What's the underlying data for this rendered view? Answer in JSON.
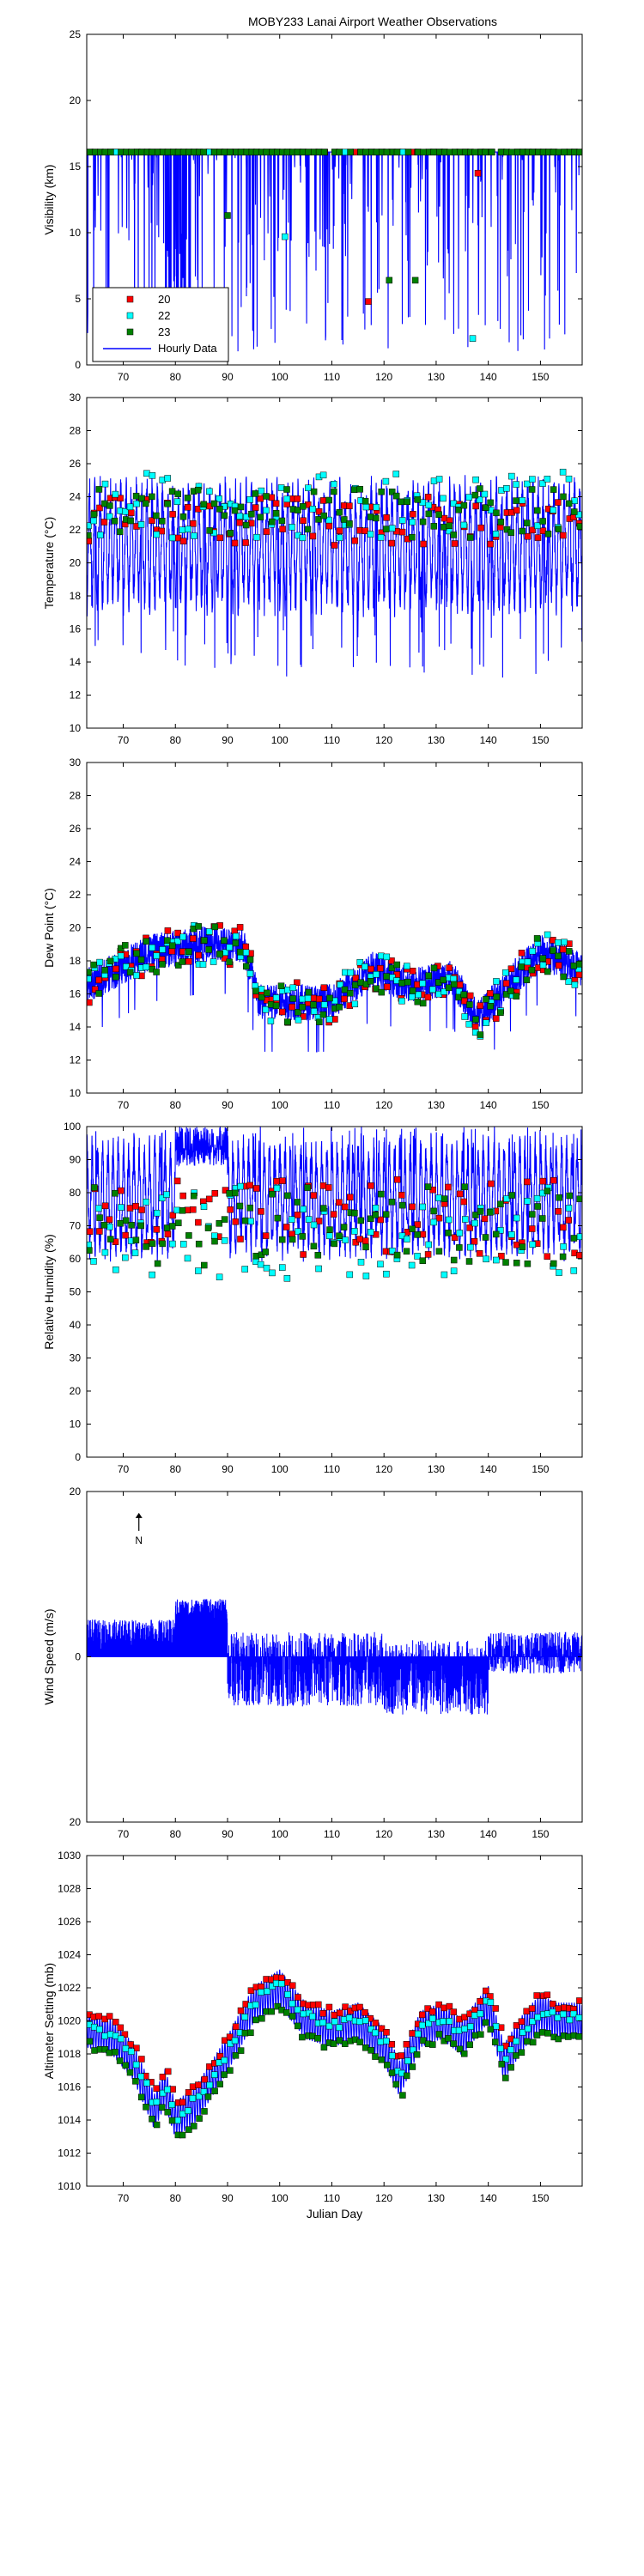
{
  "figure_title": "MOBY233 Lanai Airport Weather Observations",
  "colors": {
    "hourly": "#0000ff",
    "obs20": "#ff0000",
    "obs22": "#00ffff",
    "obs23": "#008000"
  },
  "chart_data": [
    {
      "type": "line",
      "ylabel": "Visibility (km)",
      "xlim": [
        63,
        158
      ],
      "ylim": [
        0,
        25
      ],
      "xticks": [
        70,
        80,
        90,
        100,
        110,
        120,
        130,
        140,
        150
      ],
      "yticks": [
        0,
        5,
        10,
        15,
        20,
        25
      ],
      "legend": {
        "position": "bottom-left",
        "entries": [
          "20",
          "22",
          "23",
          "Hourly Data"
        ]
      },
      "series": [
        {
          "name": "Hourly Data",
          "style": "line",
          "baseline": 16.1,
          "min": 1.0,
          "max": 16.1,
          "kind": "drops"
        },
        {
          "name": "20",
          "style": "marker",
          "typical": 16.1,
          "low": [
            [
              117,
              4.8
            ],
            [
              138,
              14.5
            ]
          ]
        },
        {
          "name": "22",
          "style": "marker",
          "typical": 16.1,
          "low": [
            [
              101,
              9.7
            ],
            [
              137,
              2.0
            ]
          ]
        },
        {
          "name": "23",
          "style": "marker",
          "typical": 16.1,
          "low": [
            [
              121,
              6.4
            ],
            [
              126,
              6.4
            ],
            [
              90,
              11.3
            ]
          ]
        }
      ]
    },
    {
      "type": "line",
      "ylabel": "Temperature (°C)",
      "xlim": [
        63,
        158
      ],
      "ylim": [
        10,
        30
      ],
      "xticks": [
        70,
        80,
        90,
        100,
        110,
        120,
        130,
        140,
        150
      ],
      "yticks": [
        10,
        12,
        14,
        16,
        18,
        20,
        22,
        24,
        26,
        28,
        30
      ],
      "series": [
        {
          "name": "Hourly Data",
          "style": "line",
          "daily_low": 18,
          "daily_high": 24,
          "min": 13,
          "max": 27
        },
        {
          "name": "20",
          "style": "marker",
          "mean": 22.5,
          "spread": 1.5
        },
        {
          "name": "22",
          "style": "marker",
          "mean": 23.5,
          "spread": 2.0
        },
        {
          "name": "23",
          "style": "marker",
          "mean": 23.0,
          "spread": 1.5
        }
      ]
    },
    {
      "type": "line",
      "ylabel": "Dew Point (°C)",
      "xlim": [
        63,
        158
      ],
      "ylim": [
        10,
        30
      ],
      "xticks": [
        70,
        80,
        90,
        100,
        110,
        120,
        130,
        140,
        150
      ],
      "yticks": [
        10,
        12,
        14,
        16,
        18,
        20,
        22,
        24,
        26,
        28,
        30
      ],
      "series": [
        {
          "name": "Hourly Data",
          "style": "line",
          "trend": [
            [
              63,
              16.5
            ],
            [
              75,
              18.5
            ],
            [
              85,
              19
            ],
            [
              93,
              19
            ],
            [
              96,
              15.5
            ],
            [
              110,
              15.5
            ],
            [
              118,
              17.5
            ],
            [
              125,
              16.5
            ],
            [
              133,
              17
            ],
            [
              138,
              14.5
            ],
            [
              145,
              17
            ],
            [
              150,
              18.5
            ],
            [
              158,
              17.5
            ]
          ]
        },
        {
          "name": "20",
          "style": "marker"
        },
        {
          "name": "22",
          "style": "marker"
        },
        {
          "name": "23",
          "style": "marker"
        }
      ]
    },
    {
      "type": "line",
      "ylabel": "Relative Humidity (%)",
      "xlim": [
        63,
        158
      ],
      "ylim": [
        0,
        100
      ],
      "xticks": [
        70,
        80,
        90,
        100,
        110,
        120,
        130,
        140,
        150
      ],
      "yticks": [
        0,
        10,
        20,
        30,
        40,
        50,
        60,
        70,
        80,
        90,
        100
      ],
      "series": [
        {
          "name": "Hourly Data",
          "style": "line",
          "daily_low": 65,
          "daily_high": 92,
          "min": 47,
          "max": 100
        },
        {
          "name": "20",
          "style": "marker",
          "mean": 72,
          "spread": 12
        },
        {
          "name": "22",
          "style": "marker",
          "mean": 68,
          "spread": 14
        },
        {
          "name": "23",
          "style": "marker",
          "mean": 70,
          "spread": 12
        }
      ]
    },
    {
      "type": "line",
      "ylabel": "Wind Speed (m/s)",
      "xlim": [
        63,
        158
      ],
      "ylim": [
        -20,
        20
      ],
      "xticks": [
        70,
        80,
        90,
        100,
        110,
        120,
        130,
        140,
        150
      ],
      "yticks": [
        {
          "value": -20,
          "label": "20"
        },
        {
          "value": 0,
          "label": "0"
        },
        {
          "value": 20,
          "label": "20"
        }
      ],
      "annotation": {
        "text": "N",
        "x": 73,
        "y": 17
      },
      "series": [
        {
          "name": "Hourly Data",
          "style": "stick",
          "segments": [
            [
              63,
              0.5,
              4.5
            ],
            [
              80,
              4,
              7
            ],
            [
              90,
              -6,
              3
            ],
            [
              120,
              -7,
              2
            ],
            [
              140,
              -2,
              3
            ],
            [
              158,
              -2,
              4
            ]
          ]
        }
      ]
    },
    {
      "type": "line",
      "ylabel": "Altimeter Setting (mb)",
      "xlabel": "Julian Day",
      "xlim": [
        63,
        158
      ],
      "ylim": [
        1010,
        1030
      ],
      "xticks": [
        70,
        80,
        90,
        100,
        110,
        120,
        130,
        140,
        150
      ],
      "yticks": [
        1010,
        1012,
        1014,
        1016,
        1018,
        1020,
        1022,
        1024,
        1026,
        1028,
        1030
      ],
      "series": [
        {
          "name": "Hourly Data",
          "style": "line",
          "trend": [
            [
              63,
              1019.5
            ],
            [
              68,
              1019
            ],
            [
              72,
              1017.5
            ],
            [
              76,
              1014.5
            ],
            [
              78,
              1016
            ],
            [
              80,
              1014
            ],
            [
              84,
              1015
            ],
            [
              87,
              1016.5
            ],
            [
              90,
              1018
            ],
            [
              95,
              1021
            ],
            [
              100,
              1022
            ],
            [
              105,
              1020
            ],
            [
              110,
              1019.5
            ],
            [
              115,
              1020
            ],
            [
              120,
              1018.5
            ],
            [
              123,
              1016.5
            ],
            [
              127,
              1019.5
            ],
            [
              131,
              1020
            ],
            [
              135,
              1019
            ],
            [
              140,
              1021
            ],
            [
              143,
              1017.5
            ],
            [
              147,
              1019.5
            ],
            [
              150,
              1020.5
            ],
            [
              153,
              1020
            ],
            [
              158,
              1020
            ]
          ]
        },
        {
          "name": "20",
          "style": "marker",
          "offset": 1.0
        },
        {
          "name": "22",
          "style": "marker",
          "offset": 0.2
        },
        {
          "name": "23",
          "style": "marker",
          "offset": -1.0
        }
      ]
    }
  ]
}
